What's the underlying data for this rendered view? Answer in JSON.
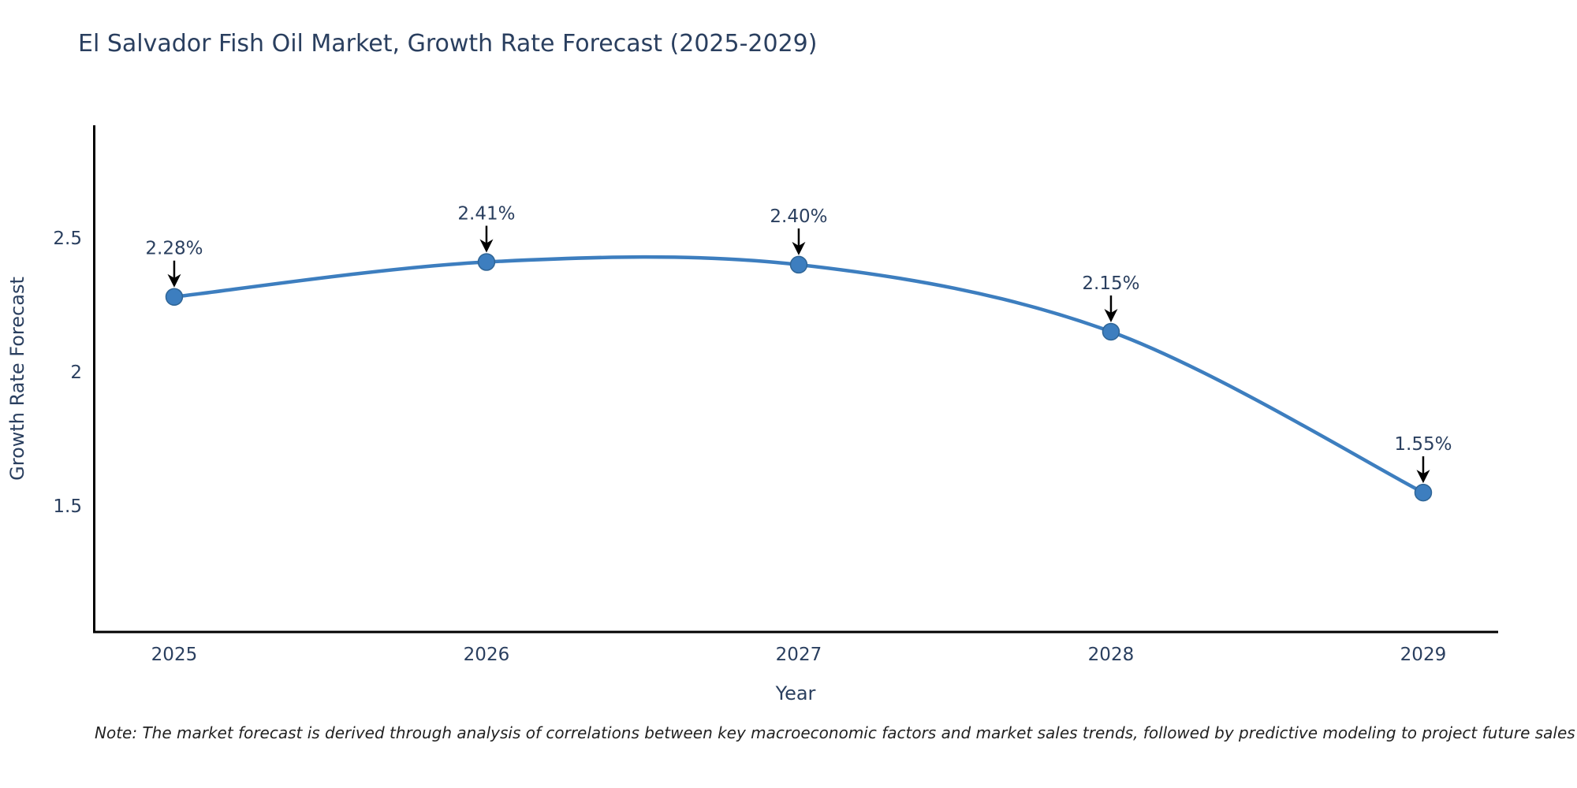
{
  "page": {
    "note": "Note: The market forecast is derived through analysis of correlations between key macroeconomic factors and market sales trends, followed by predictive modeling to project future sales"
  },
  "chart_data": {
    "type": "line",
    "title": "El Salvador Fish Oil Market, Growth Rate Forecast (2025-2029)",
    "x": [
      2025,
      2026,
      2027,
      2028,
      2029
    ],
    "series": [
      {
        "name": "Growth Rate Forecast",
        "values": [
          2.28,
          2.41,
          2.4,
          2.15,
          1.55
        ]
      }
    ],
    "point_labels": [
      "2.28%",
      "2.41%",
      "2.40%",
      "2.15%",
      "1.55%"
    ],
    "xlabel": "Year",
    "ylabel": "Growth Rate Forecast",
    "xticks": [
      "2025",
      "2026",
      "2027",
      "2028",
      "2029"
    ],
    "yticks": [
      2.5,
      2,
      1.5
    ],
    "xlim": [
      2024.74,
      2029.24
    ],
    "ylim": [
      1.03,
      2.92
    ],
    "line_shape": "spline",
    "grid": false,
    "legend_position": "none",
    "colors": {
      "line": "#3d7ebf",
      "marker": "#3d7ebf",
      "marker_edge": "#2f6596",
      "axis_line": "#000000",
      "text": "#2a3f5f",
      "annotation_text": "#2a3f5f",
      "arrow": "#000000",
      "note_text": "#222222",
      "background": "#ffffff"
    }
  }
}
